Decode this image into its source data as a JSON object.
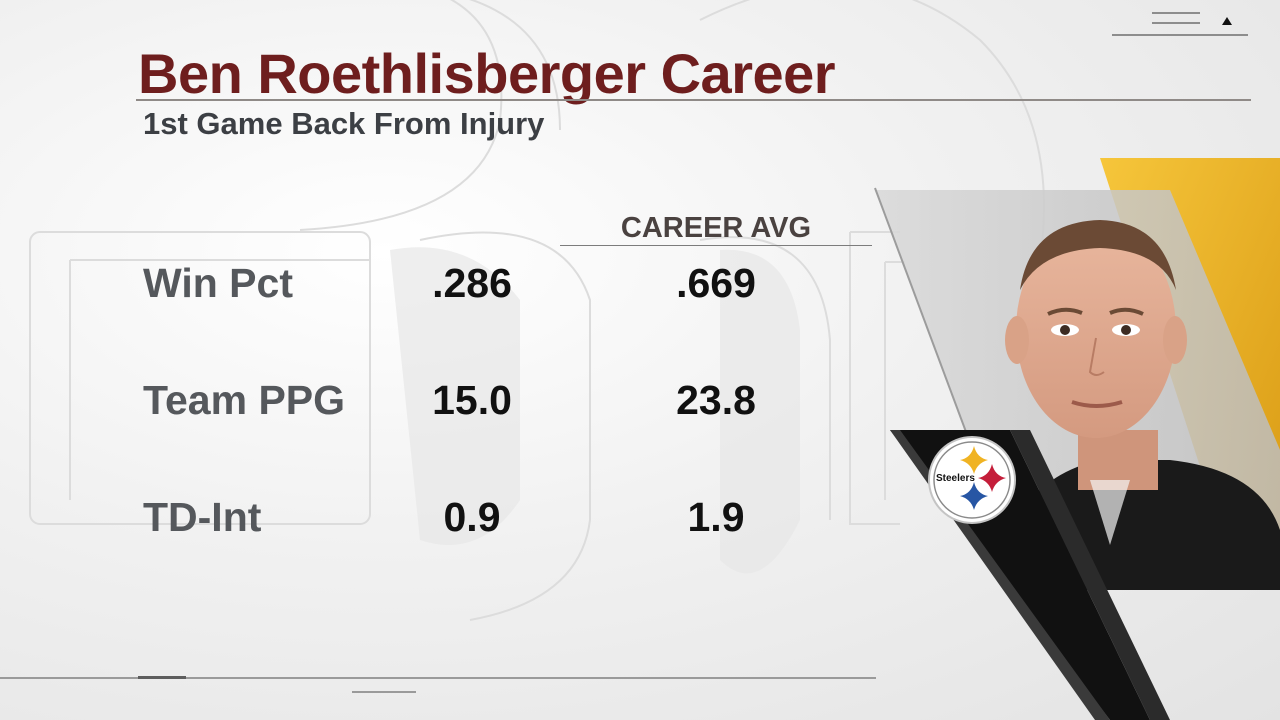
{
  "graphic": {
    "title": "Ben Roethlisberger Career",
    "subtitle": "1st Game Back From Injury",
    "column_header": "CAREER AVG",
    "rows": [
      {
        "label": "Win Pct",
        "injury_return": ".286",
        "career_avg": ".669"
      },
      {
        "label": "Team PPG",
        "injury_return": "15.0",
        "career_avg": "23.8"
      },
      {
        "label": "TD-Int",
        "injury_return": "0.9",
        "career_avg": "1.9"
      }
    ]
  },
  "logo": {
    "text": "Steelers",
    "icon": "steelers-logo-icon"
  },
  "player": {
    "icon": "player-headshot-icon"
  },
  "colors": {
    "title": "#6e1e1e",
    "subtitle": "#3c3f44",
    "label": "#55585c",
    "value": "#111111",
    "accent_gold": "#f0b323",
    "panel_black": "#111111"
  },
  "icons": [
    "menu-lines-icon",
    "up-arrow-icon",
    "steelers-logo-icon"
  ]
}
